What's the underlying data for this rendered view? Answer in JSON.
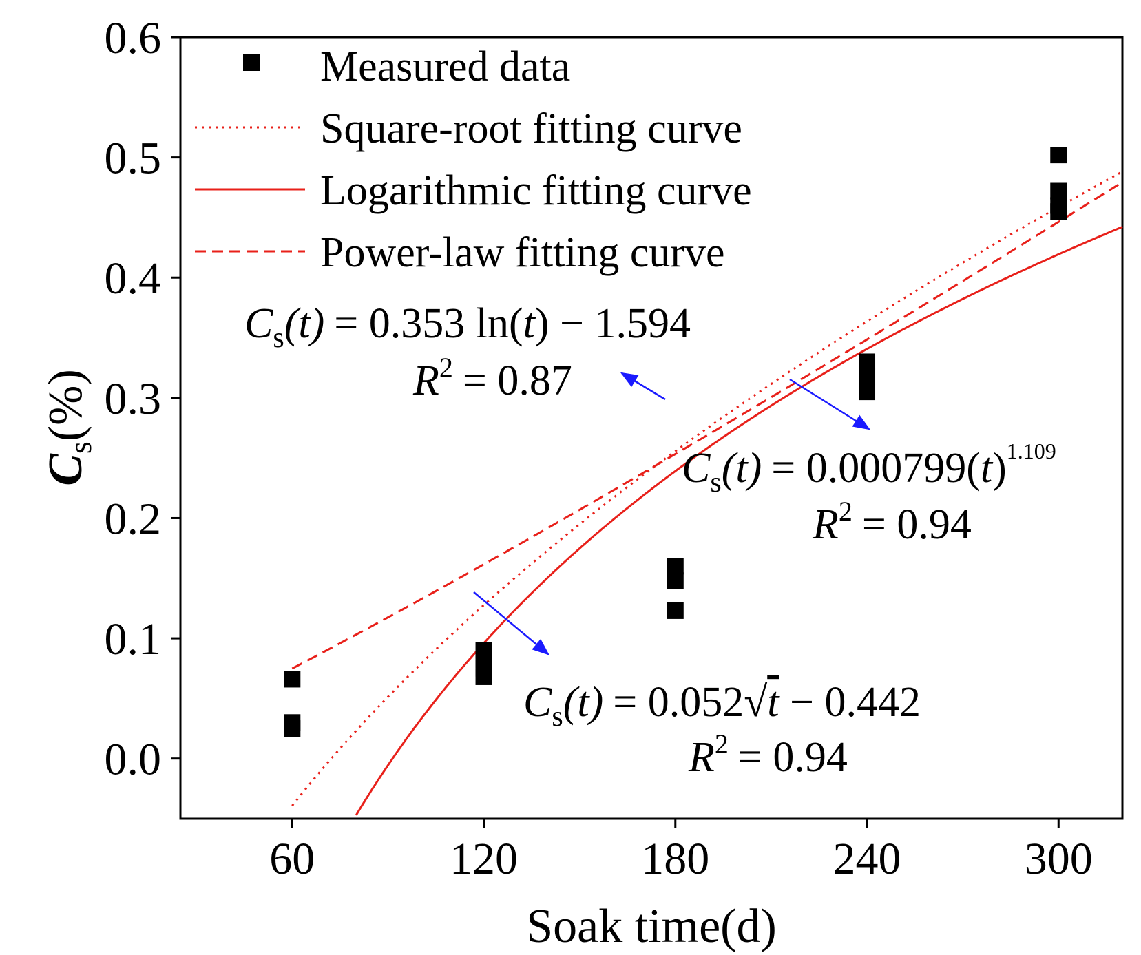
{
  "chart_data": {
    "type": "scatter",
    "xlabel": "Soak time(d)",
    "ylabel": {
      "symbol": "C",
      "subscript": "s",
      "unit": "(%)"
    },
    "xlim": [
      25,
      320
    ],
    "ylim": [
      -0.05,
      0.6
    ],
    "x_ticks": [
      60,
      120,
      180,
      240,
      300
    ],
    "y_ticks": [
      0.0,
      0.1,
      0.2,
      0.3,
      0.4,
      0.5,
      0.6
    ],
    "y_tick_labels": [
      "0.0",
      "0.1",
      "0.2",
      "0.3",
      "0.4",
      "0.5",
      "0.6"
    ],
    "grid": false,
    "legend_position": "top-left",
    "series": [
      {
        "name": "Measured data",
        "kind": "markers",
        "color": "#000000",
        "x": [
          60,
          60,
          60,
          120,
          120,
          120,
          120,
          180,
          180,
          180,
          240,
          240,
          240,
          300,
          300,
          300,
          300
        ],
        "y": [
          0.066,
          0.03,
          0.025,
          0.09,
          0.082,
          0.075,
          0.068,
          0.16,
          0.148,
          0.123,
          0.33,
          0.318,
          0.305,
          0.502,
          0.472,
          0.46,
          0.455
        ]
      },
      {
        "name": "Square-root fitting curve",
        "kind": "curve",
        "model": "sqrt",
        "params": {
          "a": 0.052,
          "b": -0.442
        },
        "x_range": [
          60,
          320
        ],
        "color": "#e8201a",
        "dash": "dotted"
      },
      {
        "name": "Logarithmic fitting curve",
        "kind": "curve",
        "model": "log",
        "params": {
          "a": 0.353,
          "b": -1.594
        },
        "x_range": [
          60,
          320
        ],
        "color": "#e8201a",
        "dash": "solid"
      },
      {
        "name": "Power-law fitting curve",
        "kind": "curve",
        "model": "power",
        "params": {
          "a": 0.000799,
          "b": 1.109
        },
        "x_range": [
          60,
          320
        ],
        "color": "#e8201a",
        "dash": "dashed"
      }
    ],
    "annotations": [
      {
        "id": "log",
        "equation": {
          "lhs_symbol": "C",
          "lhs_subscript": "s",
          "lhs_arg": "(t)",
          "rhs": "= 0.353 ln(",
          "rhs_var": "t",
          "rhs_tail": ") − 1.594"
        },
        "r2": {
          "symbol": "R",
          "sup": "2",
          "value": "= 0.87"
        }
      },
      {
        "id": "power",
        "equation": {
          "lhs_symbol": "C",
          "lhs_subscript": "s",
          "lhs_arg": "(t)",
          "rhs": "= 0.000799(",
          "rhs_var": "t",
          "rhs_tail": ")",
          "sup": "1.109"
        },
        "r2": {
          "symbol": "R",
          "sup": "2",
          "value": "= 0.94"
        }
      },
      {
        "id": "sqrt",
        "equation": {
          "lhs_symbol": "C",
          "lhs_subscript": "s",
          "lhs_arg": "(t)",
          "rhs": "= 0.052√",
          "rhs_var": "t",
          "rhs_tail": " − 0.442"
        },
        "r2": {
          "symbol": "R",
          "sup": "2",
          "value": "= 0.94"
        }
      }
    ],
    "arrow_color": "#1a1aff"
  }
}
